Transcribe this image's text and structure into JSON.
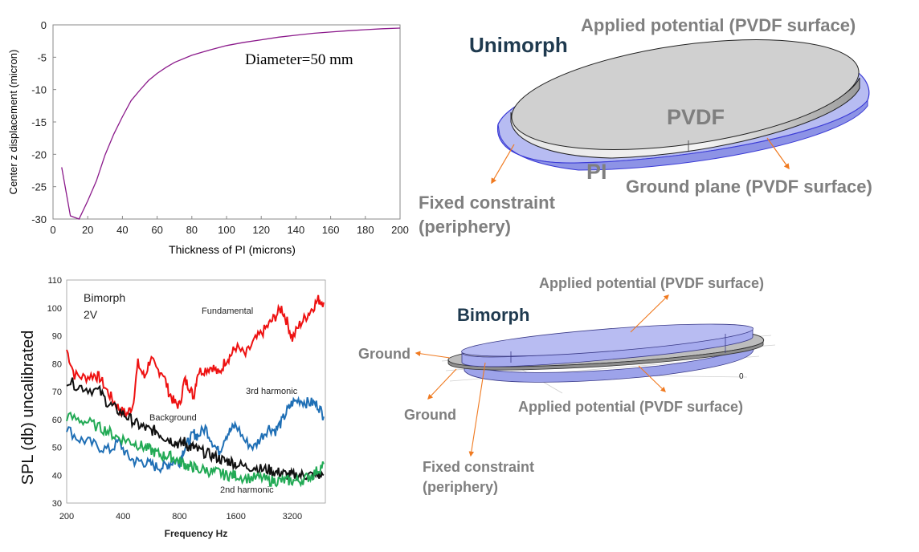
{
  "unimorph_plot": {
    "annotation": "Diameter=50 mm",
    "chart_data": {
      "type": "line",
      "xlabel": "Thickness of PI (microns)",
      "ylabel": "Center z displacement (micron)",
      "xlim": [
        0,
        200
      ],
      "ylim": [
        -30,
        0
      ],
      "xticks": [
        "0",
        "20",
        "40",
        "60",
        "80",
        "100",
        "120",
        "140",
        "160",
        "180",
        "200"
      ],
      "yticks": [
        "0",
        "-5",
        "-10",
        "-15",
        "-20",
        "-25",
        "-30"
      ],
      "grid": false,
      "series": [
        {
          "color": "#8b1a8b",
          "x": [
            5,
            10,
            15,
            20,
            25,
            30,
            35,
            40,
            45,
            50,
            55,
            60,
            65,
            70,
            80,
            90,
            100,
            110,
            120,
            130,
            140,
            150,
            160,
            170,
            180,
            190,
            200
          ],
          "y": [
            -22,
            -29.5,
            -30,
            -27.2,
            -24.1,
            -20.1,
            -16.9,
            -14.2,
            -11.7,
            -10.1,
            -8.6,
            -7.5,
            -6.6,
            -5.8,
            -4.7,
            -3.9,
            -3.2,
            -2.7,
            -2.3,
            -1.9,
            -1.6,
            -1.3,
            -1.1,
            -0.9,
            -0.75,
            -0.6,
            -0.5
          ]
        }
      ]
    }
  },
  "unimorph_diagram": {
    "title": "Unimorph",
    "labels": {
      "applied": "Applied potential (PVDF surface)",
      "pvdf": "PVDF",
      "pi": "PI",
      "ground": "Ground plane (PVDF surface)",
      "fixed_line1": "Fixed constraint",
      "fixed_line2": "(periphery)"
    }
  },
  "bimorph_plot": {
    "annotations": {
      "mode": "Bimorph",
      "voltage": "2V",
      "fundamental": "Fundamental",
      "third": "3rd harmonic",
      "background": "Background",
      "second": "2nd harmonic"
    },
    "chart_data": {
      "type": "line",
      "xlabel": "Frequency Hz",
      "ylabel": "SPL (db) uncalibrated",
      "xscale": "log2",
      "xlim": [
        200,
        4800
      ],
      "ylim": [
        30,
        110
      ],
      "xticks": [
        "200",
        "400",
        "800",
        "1600",
        "3200"
      ],
      "yticks": [
        "30",
        "40",
        "50",
        "60",
        "70",
        "80",
        "90",
        "100",
        "110"
      ],
      "series": [
        {
          "name": "Fundamental",
          "color": "#ee1111",
          "x": [
            200,
            220,
            250,
            280,
            300,
            330,
            360,
            390,
            420,
            450,
            480,
            520,
            560,
            600,
            650,
            700,
            750,
            800,
            850,
            900,
            950,
            1000,
            1100,
            1200,
            1300,
            1400,
            1500,
            1600,
            1800,
            2000,
            2200,
            2400,
            2600,
            2800,
            3000,
            3200,
            3500,
            3800,
            4100,
            4400,
            4700
          ],
          "y": [
            85,
            76,
            75,
            76,
            75,
            70,
            66,
            63,
            62,
            65,
            80,
            75,
            82,
            78,
            77,
            70,
            66,
            65,
            74,
            72,
            68,
            77,
            78,
            79,
            76,
            81,
            83,
            86,
            83,
            88,
            91,
            94,
            97,
            100,
            95,
            89,
            94,
            97,
            100,
            103,
            102
          ]
        },
        {
          "name": "3rd harmonic",
          "color": "#1f6fb5",
          "x": [
            200,
            230,
            260,
            300,
            340,
            380,
            420,
            460,
            500,
            550,
            600,
            650,
            700,
            750,
            800,
            850,
            900,
            950,
            1000,
            1100,
            1200,
            1300,
            1400,
            1500,
            1600,
            1800,
            2000,
            2200,
            2400,
            2600,
            2800,
            3000,
            3200,
            3500,
            3800,
            4100,
            4400,
            4700
          ],
          "y": [
            57,
            53,
            52,
            50,
            49,
            52,
            47,
            45,
            45,
            44,
            43,
            43,
            44,
            45,
            45,
            50,
            52,
            55,
            54,
            57,
            52,
            48,
            54,
            56,
            58,
            52,
            50,
            54,
            57,
            56,
            59,
            63,
            66,
            67,
            66,
            66,
            65,
            61
          ]
        },
        {
          "name": "Background",
          "color": "#111111",
          "x": [
            200,
            230,
            260,
            300,
            330,
            360,
            400,
            440,
            480,
            520,
            560,
            600,
            650,
            700,
            750,
            800,
            850,
            900,
            950,
            1000,
            1100,
            1200,
            1300,
            1400,
            1500,
            1600,
            1800,
            2000,
            2200,
            2400,
            2600,
            2800,
            3000,
            3200,
            3500,
            3800,
            4100,
            4400,
            4700
          ],
          "y": [
            74,
            72,
            71,
            70,
            66,
            64,
            62,
            60,
            58,
            57,
            56,
            56,
            54,
            53,
            52,
            51,
            52,
            50,
            50,
            49,
            48,
            47,
            46,
            45,
            45,
            44,
            43,
            43,
            42,
            42,
            41,
            41,
            40,
            40,
            40,
            40,
            40,
            40,
            40
          ]
        },
        {
          "name": "2nd harmonic",
          "color": "#22aa55",
          "x": [
            200,
            230,
            260,
            300,
            330,
            360,
            400,
            440,
            480,
            520,
            560,
            600,
            650,
            700,
            750,
            800,
            850,
            900,
            950,
            1000,
            1100,
            1200,
            1300,
            1400,
            1500,
            1600,
            1800,
            2000,
            2200,
            2400,
            2600,
            2800,
            3000,
            3200,
            3500,
            3800,
            4100,
            4400,
            4700
          ],
          "y": [
            61,
            60,
            59,
            57,
            56,
            54,
            53,
            52,
            51,
            50,
            49,
            48,
            47,
            47,
            46,
            45,
            44,
            43,
            43,
            42,
            42,
            41,
            41,
            40,
            40,
            40,
            39,
            39,
            39,
            38,
            38,
            38,
            38,
            38,
            38,
            39,
            40,
            42,
            44
          ]
        }
      ]
    }
  },
  "bimorph_diagram": {
    "title": "Bimorph",
    "labels": {
      "applied_top": "Applied potential (PVDF surface)",
      "applied_bottom": "Applied potential (PVDF surface)",
      "ground_left": "Ground",
      "ground_bottom": "Ground",
      "fixed_line1": "Fixed constraint",
      "fixed_line2": "(periphery)",
      "axis_tick": "0"
    }
  },
  "colors": {
    "arrow": "#f07a20",
    "disk_gray": "#d0d0d0",
    "disk_blue": "#aab0ee",
    "label_gray": "#7f7f7f",
    "title_navy": "#1f3a4f"
  }
}
